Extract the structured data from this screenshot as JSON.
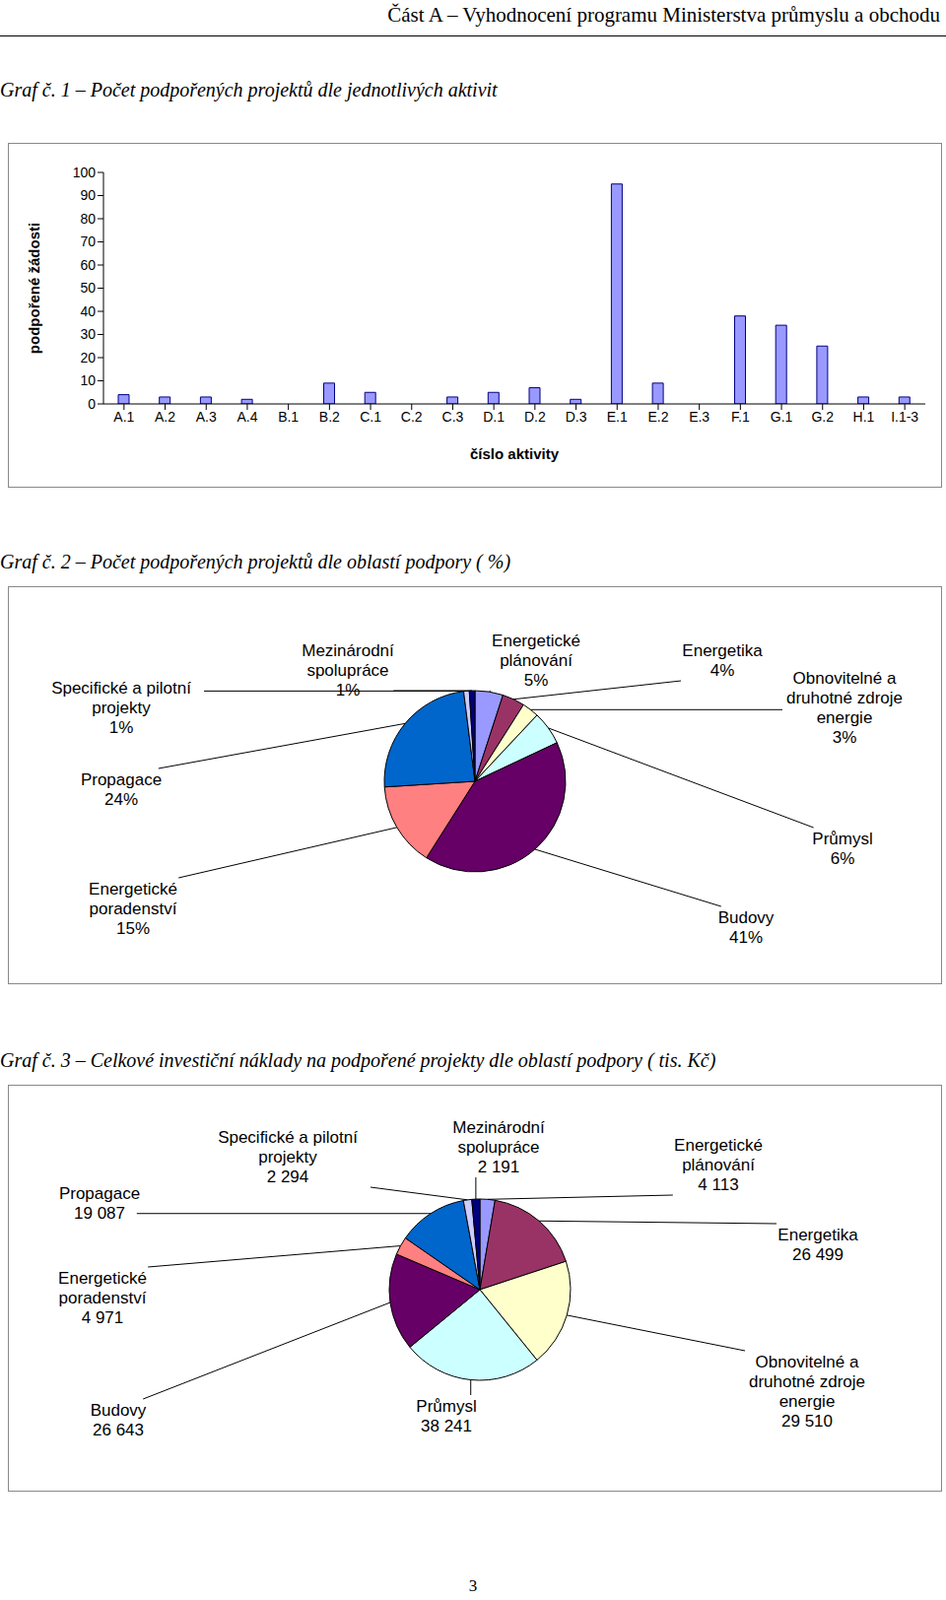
{
  "header": "Část A – Vyhodnocení programu Ministerstva průmyslu a obchodu",
  "page_number": 3,
  "chart_data": [
    {
      "type": "bar",
      "title": "Graf č. 1 – Počet podpořených projektů dle jednotlivých aktivit",
      "x_label": "číslo aktivity",
      "y_label": "podpořené žádosti",
      "categories": [
        "A.1",
        "A.2",
        "A.3",
        "A.4",
        "B.1",
        "B.2",
        "C.1",
        "C.2",
        "C.3",
        "D.1",
        "D.2",
        "D.3",
        "E.1",
        "E.2",
        "E.3",
        "F.1",
        "G.1",
        "G.2",
        "H.1",
        "I.1-3"
      ],
      "values": [
        4,
        3,
        3,
        2,
        0,
        9,
        5,
        0,
        3,
        5,
        7,
        2,
        95,
        9,
        0,
        38,
        34,
        25,
        3,
        3
      ],
      "color": "#9999ff",
      "ylim": [
        0,
        100
      ],
      "yticks": [
        0,
        10,
        20,
        30,
        40,
        50,
        60,
        70,
        80,
        90,
        100
      ],
      "grid": false
    },
    {
      "type": "pie",
      "title": "Graf č. 2 – Počet podpořených projektů dle oblastí podpory ( %)",
      "categories": [
        "Energetické plánování",
        "Energetika",
        "Obnovitelné a druhotné zdroje energie",
        "Průmysl",
        "Budovy",
        "Energetické poradenství",
        "Propagace",
        "Specifické a pilotní projekty",
        "Mezinárodní spolupráce"
      ],
      "values": [
        5,
        4,
        3,
        6,
        41,
        15,
        24,
        1,
        1
      ],
      "value_labels": [
        "5%",
        "4%",
        "3%",
        "6%",
        "41%",
        "15%",
        "24%",
        "1%",
        "1%"
      ],
      "colors": [
        "#9999ff",
        "#993366",
        "#ffffcc",
        "#ccffff",
        "#660066",
        "#ff8080",
        "#0066cc",
        "#ccccff",
        "#000080"
      ]
    },
    {
      "type": "pie",
      "title": "Graf č. 3 – Celkové investiční náklady na podpořené projekty dle oblastí podpory ( tis. Kč)",
      "categories": [
        "Energetické plánování",
        "Energetika",
        "Obnovitelné a druhotné zdroje energie",
        "Průmysl",
        "Budovy",
        "Energetické poradenství",
        "Propagace",
        "Specifické a pilotní projekty",
        "Mezinárodní spolupráce"
      ],
      "values": [
        4113,
        26499,
        29510,
        38241,
        26643,
        4971,
        19087,
        2294,
        2191
      ],
      "value_labels": [
        "4 113",
        "26 499",
        "29 510",
        "38 241",
        "26 643",
        "4 971",
        "19 087",
        "2 294",
        "2 191"
      ],
      "colors": [
        "#9999ff",
        "#993366",
        "#ffffcc",
        "#ccffff",
        "#660066",
        "#ff8080",
        "#0066cc",
        "#ccccff",
        "#000080"
      ]
    }
  ]
}
